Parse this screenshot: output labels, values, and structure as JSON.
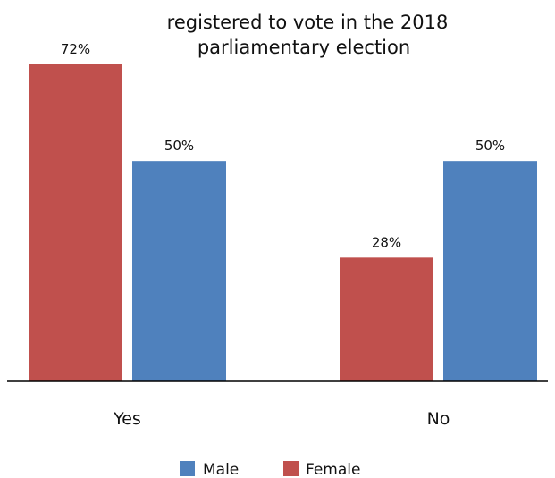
{
  "chart_data": {
    "type": "bar",
    "title_lines": [
      "registered to vote in the 2018",
      "parliamentary election"
    ],
    "categories": [
      "Yes",
      "No"
    ],
    "series": [
      {
        "name": "Female",
        "values": [
          72,
          28
        ],
        "color": "#c0504d"
      },
      {
        "name": "Male",
        "values": [
          50,
          50
        ],
        "color": "#4f81bd"
      }
    ],
    "value_suffix": "%",
    "ylim": [
      0,
      72
    ],
    "grid": false,
    "legend": {
      "placement": "bottom",
      "order": [
        "Male",
        "Female"
      ]
    }
  }
}
